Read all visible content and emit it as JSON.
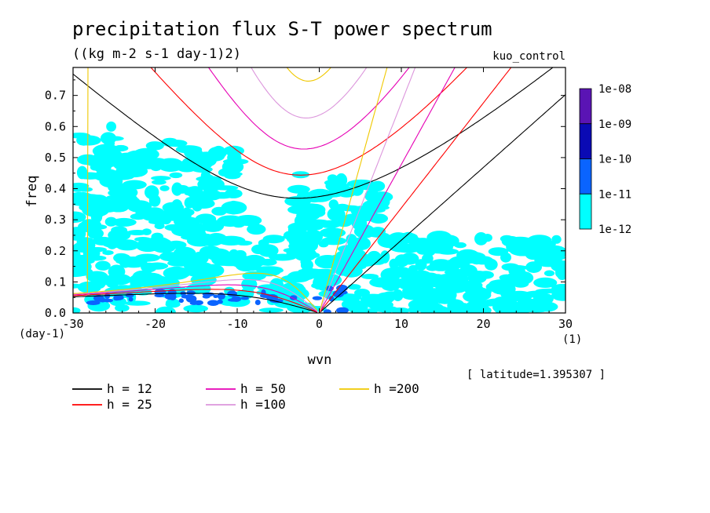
{
  "chart_data": {
    "type": "heatmap",
    "title": "precipitation flux S-T power spectrum",
    "subtitle": "((kg m-2 s-1 day-1)2)",
    "run_label": "kuo_control",
    "xlabel": "wvn",
    "ylabel": "freq",
    "x_unit": "(1)",
    "y_unit": "(day-1)",
    "latitude_note": "[ latitude=1.395307 ]",
    "xlim": [
      -30,
      30
    ],
    "ylim": [
      0,
      0.79
    ],
    "x_ticks": [
      -30,
      -20,
      -10,
      0,
      10,
      20,
      30
    ],
    "x_tick_labels": [
      "-30",
      "-20",
      "-10",
      "0",
      "10",
      "20",
      "30"
    ],
    "y_ticks": [
      0.0,
      0.1,
      0.2,
      0.3,
      0.4,
      0.5,
      0.6,
      0.7
    ],
    "y_tick_labels": [
      "0.0",
      "0.1",
      "0.2",
      "0.3",
      "0.4",
      "0.5",
      "0.6",
      "0.7"
    ],
    "colorbar": {
      "labels": [
        "1e-08",
        "1e-09",
        "1e-10",
        "1e-11",
        "1e-12"
      ],
      "colors": [
        "#5a14b4",
        "#0a0ab4",
        "#0a64ff",
        "#00ffff"
      ]
    },
    "field_levels": [
      {
        "level": "1e-12 to 1e-11",
        "color": "#00ffff",
        "regions": [
          {
            "x": [
              -30,
              30
            ],
            "y": [
              0.0,
              0.1
            ]
          },
          {
            "x": [
              -30,
              -7
            ],
            "y": [
              0.1,
              0.3
            ]
          },
          {
            "x": [
              -30,
              -10
            ],
            "y": [
              0.3,
              0.55
            ]
          },
          {
            "x": [
              -7,
              30
            ],
            "y": [
              0.1,
              0.25
            ]
          },
          {
            "x": [
              -3,
              8
            ],
            "y": [
              0.25,
              0.45
            ]
          },
          {
            "x": [
              -30,
              -25
            ],
            "y": [
              0.55,
              0.6
            ]
          }
        ]
      },
      {
        "level": "1e-11 to 1e-10",
        "color": "#0a64ff",
        "regions": [
          {
            "x": [
              -28,
              0
            ],
            "y": [
              0.03,
              0.07
            ]
          },
          {
            "x": [
              0,
              3
            ],
            "y": [
              0.0,
              0.08
            ]
          }
        ]
      }
    ],
    "series": [
      {
        "name": "h = 12",
        "color": "#000000"
      },
      {
        "name": "h = 25",
        "color": "#ff0000"
      },
      {
        "name": "h = 50",
        "color": "#e600b4"
      },
      {
        "name": "h =100",
        "color": "#dc96dc"
      },
      {
        "name": "h =200",
        "color": "#f0c800"
      }
    ]
  },
  "colors": {
    "cyan": "#00ffff",
    "blue": "#0a64ff",
    "navy": "#0a0ab4",
    "purple": "#5a14b4"
  }
}
